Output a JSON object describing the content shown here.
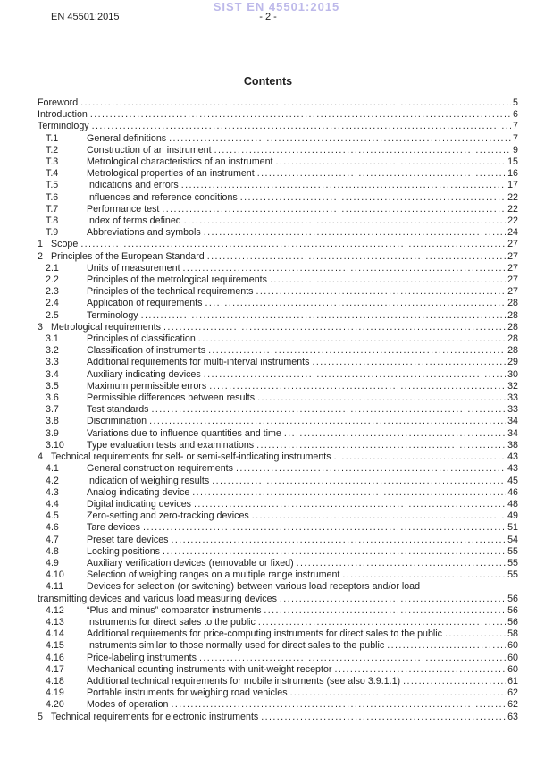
{
  "page": {
    "watermark": "SIST EN 45501:2015",
    "doc_ref": "EN 45501:2015",
    "page_label": "- 2 -",
    "contents_title": "Contents"
  },
  "colors": {
    "watermark": "#bdb9ea",
    "text": "#1f1f1f",
    "background": "#ffffff"
  },
  "toc": {
    "entries": [
      {
        "level": 0,
        "num": "",
        "title": "Foreword",
        "page": "5"
      },
      {
        "level": 0,
        "num": "",
        "title": "Introduction",
        "page": "6"
      },
      {
        "level": 0,
        "num": "",
        "title": "Terminology",
        "page": "7"
      },
      {
        "level": 1,
        "num": "T.1",
        "title": "General definitions",
        "page": "7"
      },
      {
        "level": 1,
        "num": "T.2",
        "title": "Construction of an instrument",
        "page": "9"
      },
      {
        "level": 1,
        "num": "T.3",
        "title": "Metrological characteristics of an instrument",
        "page": "15"
      },
      {
        "level": 1,
        "num": "T.4",
        "title": "Metrological properties of an instrument",
        "page": "16"
      },
      {
        "level": 1,
        "num": "T.5",
        "title": "Indications and errors",
        "page": "17"
      },
      {
        "level": 1,
        "num": "T.6",
        "title": "Influences and reference conditions",
        "page": "22"
      },
      {
        "level": 1,
        "num": "T.7",
        "title": "Performance test",
        "page": "22"
      },
      {
        "level": 1,
        "num": "T.8",
        "title": "Index of terms defined",
        "page": "22"
      },
      {
        "level": 1,
        "num": "T.9",
        "title": "Abbreviations and symbols",
        "page": "24"
      },
      {
        "level": 0,
        "num": "1",
        "title": "Scope",
        "page": "27"
      },
      {
        "level": 0,
        "num": "2",
        "title": "Principles of the European Standard",
        "page": "27"
      },
      {
        "level": 1,
        "num": "2.1",
        "title": "Units of measurement",
        "page": "27"
      },
      {
        "level": 1,
        "num": "2.2",
        "title": "Principles of the metrological requirements",
        "page": "27"
      },
      {
        "level": 1,
        "num": "2.3",
        "title": "Principles of the technical requirements",
        "page": "27"
      },
      {
        "level": 1,
        "num": "2.4",
        "title": "Application of requirements",
        "page": "28"
      },
      {
        "level": 1,
        "num": "2.5",
        "title": "Terminology",
        "page": "28"
      },
      {
        "level": 0,
        "num": "3",
        "title": "Metrological requirements",
        "page": "28"
      },
      {
        "level": 1,
        "num": "3.1",
        "title": "Principles of classification",
        "page": "28"
      },
      {
        "level": 1,
        "num": "3.2",
        "title": "Classification of instruments",
        "page": "28"
      },
      {
        "level": 1,
        "num": "3.3",
        "title": "Additional requirements for multi-interval instruments",
        "page": "29"
      },
      {
        "level": 1,
        "num": "3.4",
        "title": "Auxiliary indicating devices",
        "page": "30"
      },
      {
        "level": 1,
        "num": "3.5",
        "title": "Maximum permissible errors",
        "page": "32"
      },
      {
        "level": 1,
        "num": "3.6",
        "title": "Permissible differences between results",
        "page": "33"
      },
      {
        "level": 1,
        "num": "3.7",
        "title": "Test standards",
        "page": "33"
      },
      {
        "level": 1,
        "num": "3.8",
        "title": "Discrimination",
        "page": "34"
      },
      {
        "level": 1,
        "num": "3.9",
        "title": "Variations due to influence quantities and time",
        "page": "34"
      },
      {
        "level": 1,
        "num": "3.10",
        "title": "Type evaluation tests and examinations",
        "page": "38"
      },
      {
        "level": 0,
        "num": "4",
        "title": "Technical requirements for self- or semi-self-indicating instruments",
        "page": "43"
      },
      {
        "level": 1,
        "num": "4.1",
        "title": "General construction requirements",
        "page": "43"
      },
      {
        "level": 1,
        "num": "4.2",
        "title": "Indication of weighing results",
        "page": "45"
      },
      {
        "level": 1,
        "num": "4.3",
        "title": "Analog indicating device",
        "page": "46"
      },
      {
        "level": 1,
        "num": "4.4",
        "title": "Digital indicating devices",
        "page": "48"
      },
      {
        "level": 1,
        "num": "4.5",
        "title": "Zero-setting and zero-tracking devices",
        "page": "49"
      },
      {
        "level": 1,
        "num": "4.6",
        "title": "Tare devices",
        "page": "51"
      },
      {
        "level": 1,
        "num": "4.7",
        "title": "Preset tare devices",
        "page": "54"
      },
      {
        "level": 1,
        "num": "4.8",
        "title": "Locking positions",
        "page": "55"
      },
      {
        "level": 1,
        "num": "4.9",
        "title": "Auxiliary verification devices (removable or fixed)",
        "page": "55"
      },
      {
        "level": 1,
        "num": "4.10",
        "title": "Selection of weighing ranges on a multiple range instrument",
        "page": "55"
      },
      {
        "level": 1,
        "num": "4.11",
        "title": "Devices for selection (or switching) between various load receptors and/or load",
        "title2": "transmitting devices and various load measuring devices",
        "page": "56"
      },
      {
        "level": 1,
        "num": "4.12",
        "title": "“Plus and minus” comparator instruments",
        "page": "56"
      },
      {
        "level": 1,
        "num": "4.13",
        "title": "Instruments for direct sales to the public",
        "page": "56"
      },
      {
        "level": 1,
        "num": "4.14",
        "title": "Additional requirements for price-computing instruments for direct sales to the public",
        "page": "58"
      },
      {
        "level": 1,
        "num": "4.15",
        "title": "Instruments similar to those normally used for direct sales to the public",
        "page": "60"
      },
      {
        "level": 1,
        "num": "4.16",
        "title": "Price-labeling instruments",
        "page": "60"
      },
      {
        "level": 1,
        "num": "4.17",
        "title": "Mechanical counting instruments with unit-weight receptor",
        "page": "60"
      },
      {
        "level": 1,
        "num": "4.18",
        "title": "Additional technical requirements for mobile instruments (see also 3.9.1.1)",
        "page": "61"
      },
      {
        "level": 1,
        "num": "4.19",
        "title": "Portable instruments for weighing road vehicles",
        "page": "62"
      },
      {
        "level": 1,
        "num": "4.20",
        "title": "Modes of operation",
        "page": "62"
      },
      {
        "level": 0,
        "num": "5",
        "title": "Technical requirements for electronic instruments",
        "page": "63"
      }
    ]
  }
}
